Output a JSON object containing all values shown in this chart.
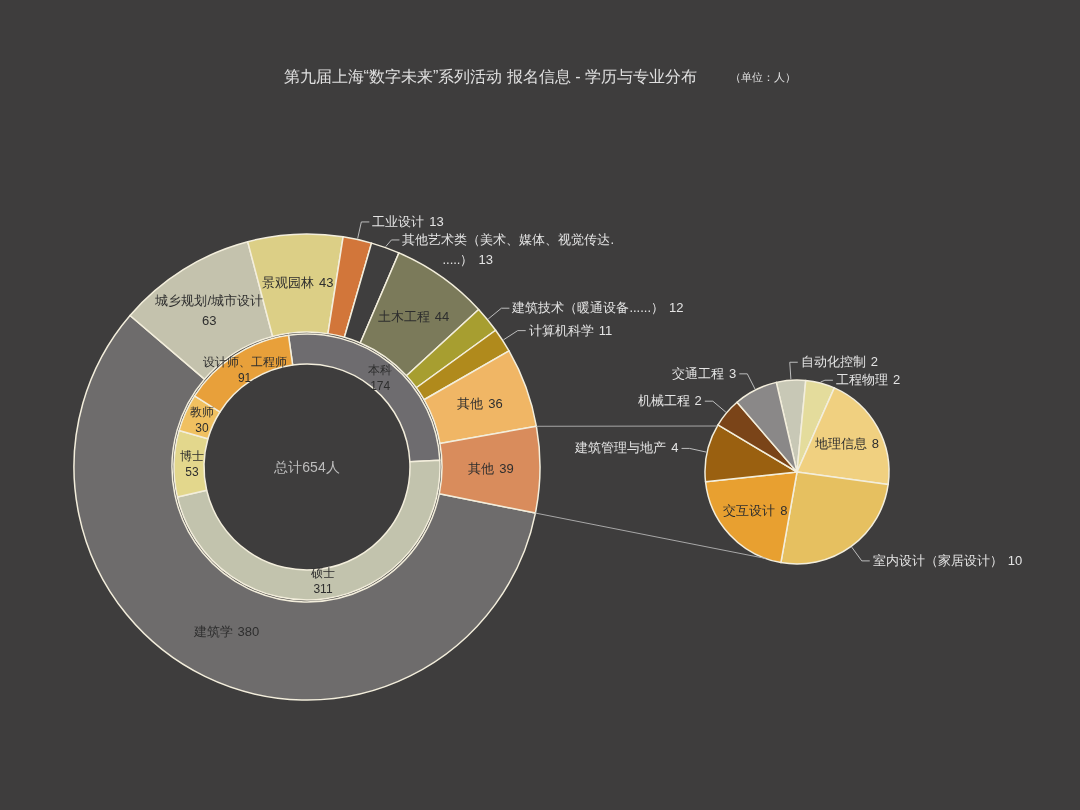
{
  "chart_data": [
    {
      "type": "donut",
      "title": "第九届上海“数字未来”系列活动 报名信息 - 学历与专业分布",
      "subtitle": "（单位：人）",
      "categories": [
        "建筑学",
        "城乡规划/城市设计",
        "景观园林",
        "工业设计",
        "其他艺术类（美术、媒体、视觉传达......）",
        "土木工程",
        "建筑技术（暖通设备......）",
        "计算机科学",
        "其他",
        "其他"
      ],
      "values": [
        380,
        63,
        43,
        13,
        13,
        44,
        12,
        11,
        36,
        39
      ],
      "colors": [
        "#6e6c6c",
        "#c4c2ad",
        "#dccf86",
        "#d2763a",
        "#3f3e3e",
        "#7b7a5a",
        "#a79e30",
        "#b08a1c",
        "#f0b665",
        "#d98c5c"
      ],
      "data_labels": true
    },
    {
      "type": "donut",
      "categories": [
        "本科",
        "硕士",
        "博士",
        "教师",
        "设计师、工程师"
      ],
      "values": [
        174,
        311,
        53,
        30,
        91
      ],
      "colors": [
        "#6e6c6f",
        "#c2c3ad",
        "#e3d78c",
        "#f0c060",
        "#e8a03a"
      ],
      "data_labels": true,
      "annotations": [
        "总计654人"
      ]
    },
    {
      "type": "pie",
      "categories": [
        "自动化控制",
        "工程物理",
        "地理信息",
        "室内设计（家居设计）",
        "交互设计",
        "建筑管理与地产",
        "机械工程",
        "交通工程"
      ],
      "values": [
        2,
        2,
        8,
        10,
        8,
        4,
        2,
        3
      ],
      "colors": [
        "#c8c8b6",
        "#e4dc9c",
        "#f0d080",
        "#e6c060",
        "#e8a030",
        "#9a6010",
        "#7a4418",
        "#8a8888"
      ],
      "data_labels": true
    }
  ]
}
